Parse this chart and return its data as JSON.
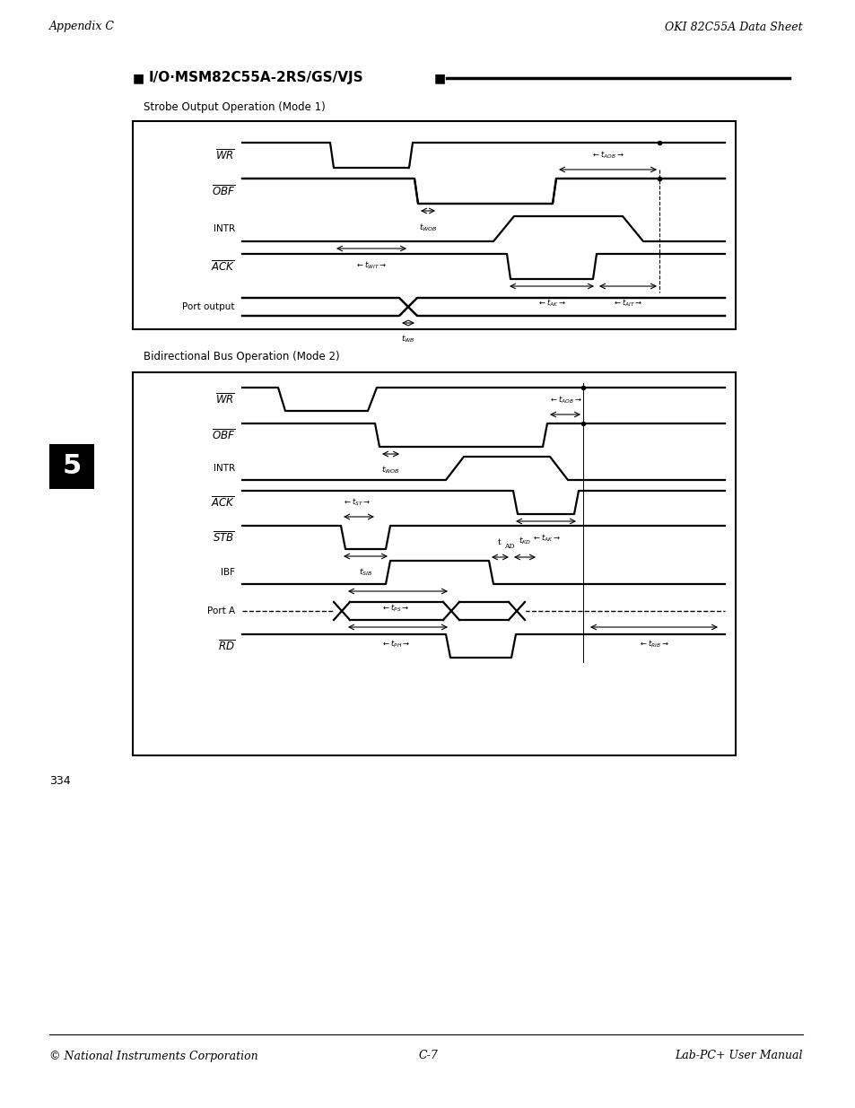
{
  "page_header_left": "Appendix C",
  "page_header_right": "OKI 82C55A Data Sheet",
  "section_title": "■  I/O·MSM82C55A-2RS/GS/VJS",
  "section_title_square": "■",
  "diagram1_title": "Strobe Output Operation (Mode 1)",
  "diagram2_title": "Bidirectional Bus Operation (Mode 2)",
  "page_number": "334",
  "footer_left": "© National Instruments Corporation",
  "footer_center": "C-7",
  "footer_right": "Lab-PC+ User Manual",
  "bg_color": "#ffffff",
  "line_color": "#000000"
}
